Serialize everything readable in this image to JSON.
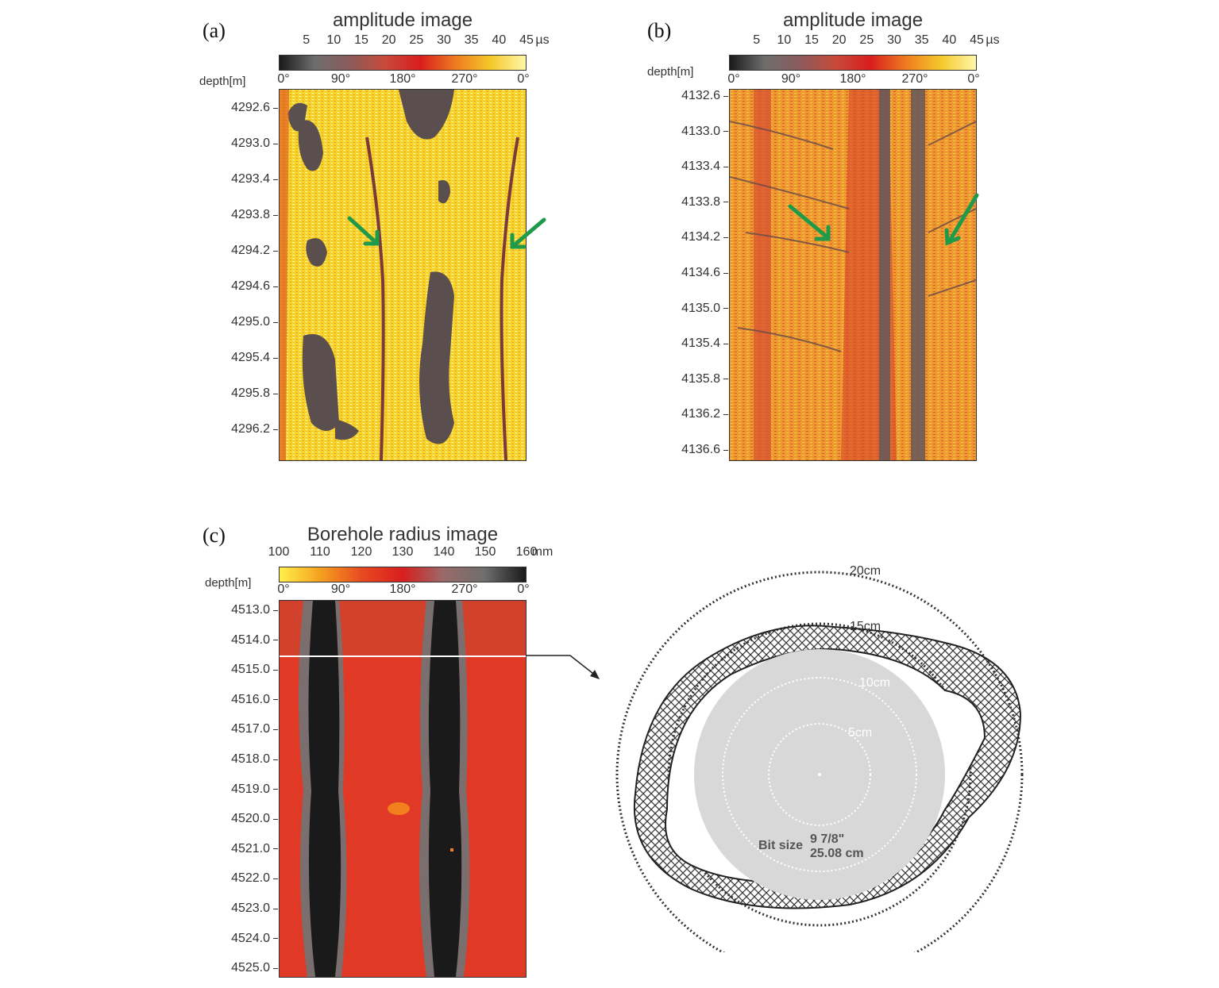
{
  "panel_a": {
    "letter": "(a)",
    "title": "amplitude image",
    "scale_ticks": [
      "5",
      "10",
      "15",
      "20",
      "25",
      "30",
      "35",
      "40",
      "45"
    ],
    "scale_unit": "µs",
    "azimuth_ticks": [
      "0°",
      "90°",
      "180°",
      "270°",
      "0°"
    ],
    "depth_label": "depth[m]",
    "depth_ticks": [
      "4292.6",
      "4293.0",
      "4293.4",
      "4293.8",
      "4294.2",
      "4294.6",
      "4295.0",
      "4295.4",
      "4295.8",
      "4296.2"
    ]
  },
  "panel_b": {
    "letter": "(b)",
    "title": "amplitude image",
    "scale_ticks": [
      "5",
      "10",
      "15",
      "20",
      "25",
      "30",
      "35",
      "40",
      "45"
    ],
    "scale_unit": "µs",
    "azimuth_ticks": [
      "0°",
      "90°",
      "180°",
      "270°",
      "0°"
    ],
    "depth_label": "depth[m]",
    "depth_ticks": [
      "4132.6",
      "4133.0",
      "4133.4",
      "4133.8",
      "4134.2",
      "4134.6",
      "4135.0",
      "4135.4",
      "4135.8",
      "4136.2",
      "4136.6"
    ]
  },
  "panel_c": {
    "letter": "(c)",
    "title": "Borehole radius image",
    "scale_ticks": [
      "100",
      "110",
      "120",
      "130",
      "140",
      "150",
      "160"
    ],
    "scale_unit": "mm",
    "azimuth_ticks": [
      "0°",
      "90°",
      "180°",
      "270°",
      "0°"
    ],
    "depth_label": "depth[m]",
    "depth_ticks": [
      "4513.0",
      "4514.0",
      "4515.0",
      "4516.0",
      "4517.0",
      "4518.0",
      "4519.0",
      "4520.0",
      "4521.0",
      "4522.0",
      "4523.0",
      "4524.0",
      "4525.0"
    ]
  },
  "cross_section": {
    "ring_labels": [
      "20cm",
      "15cm",
      "10cm",
      "5cm"
    ],
    "bit_size_label": "Bit size",
    "bit_size_inches": "9 7/8\"",
    "bit_size_cm": "25.08 cm"
  },
  "colors": {
    "amplitude_scale": [
      "#1a1a1a",
      "#6e6e6e",
      "#8a5a5a",
      "#c84a3a",
      "#d81e1e",
      "#ee7a20",
      "#f5c82a",
      "#fff7a8"
    ],
    "radius_scale": [
      "#fff04a",
      "#f5a020",
      "#e84a20",
      "#d81e1e",
      "#9a6a6a",
      "#6e6e6e",
      "#1a1a1a"
    ],
    "arrow": "#1e9a4a"
  }
}
